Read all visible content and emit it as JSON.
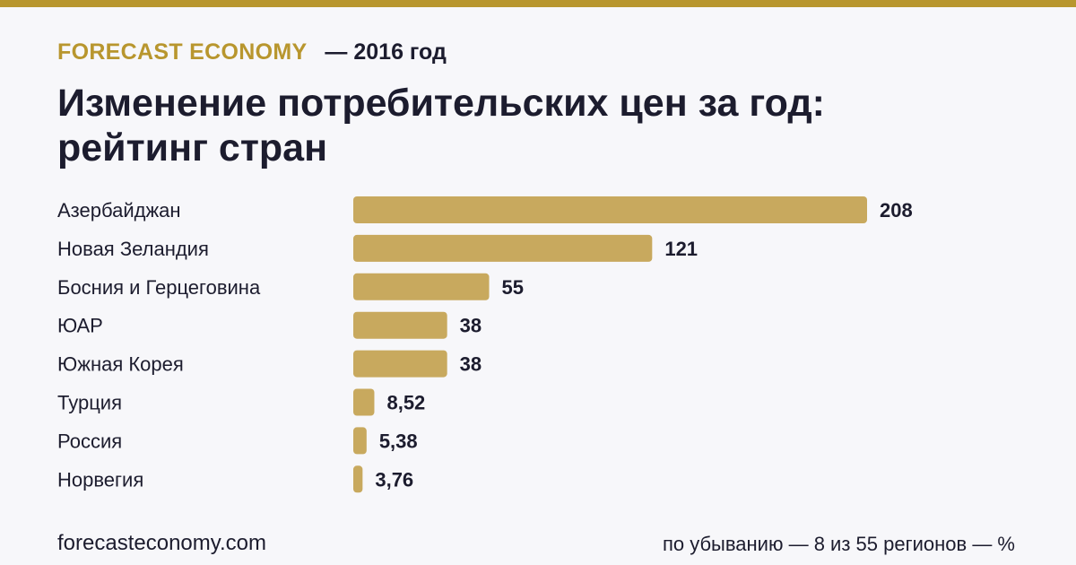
{
  "header": {
    "brand": "FORECAST ECONOMY",
    "subtitle": "— 2016 год"
  },
  "title": "Изменение потребительских цен за год: рейтинг стран",
  "footer": {
    "source": "forecasteconomy.com",
    "note": "по убыванию — 8 из 55 регионов — %"
  },
  "colors": {
    "accent": "#b8962e",
    "bar": "#c8a95e",
    "text": "#1c1c2e",
    "background": "#f7f7fa"
  },
  "chart_data": {
    "type": "bar",
    "orientation": "horizontal",
    "categories": [
      "Азербайджан",
      "Новая Зеландия",
      "Босния и Герцеговина",
      "ЮАР",
      "Южная Корея",
      "Турция",
      "Россия",
      "Норвегия"
    ],
    "values": [
      208,
      121,
      55,
      38,
      38,
      8.52,
      5.38,
      3.76
    ],
    "value_labels": [
      "208",
      "121",
      "55",
      "38",
      "38",
      "8,52",
      "5,38",
      "3,76"
    ],
    "xlim": [
      0,
      208
    ],
    "grid": false,
    "legend": "none"
  }
}
